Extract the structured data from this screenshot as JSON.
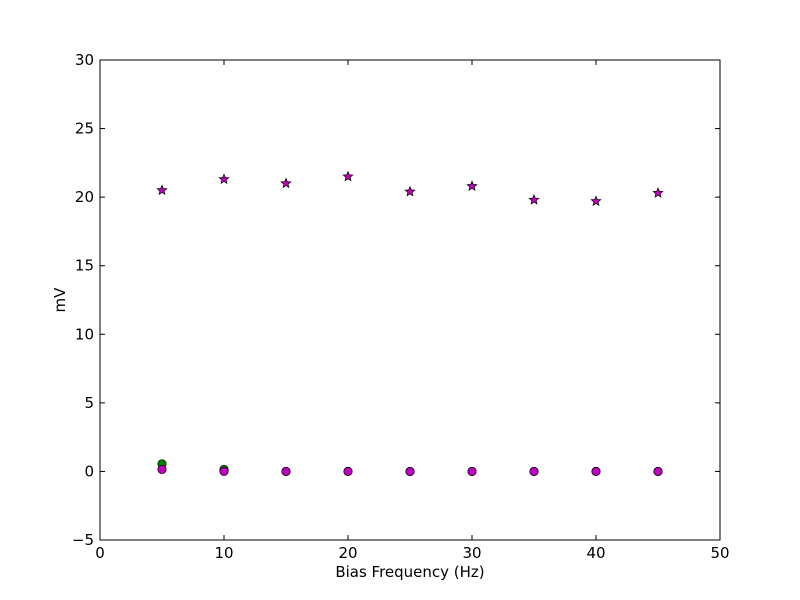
{
  "chart_data": {
    "type": "scatter",
    "title": "",
    "xlabel": "Bias Frequency (Hz)",
    "ylabel": "mV",
    "xlim": [
      0,
      50
    ],
    "ylim": [
      -5,
      30
    ],
    "xticks": [
      0,
      10,
      20,
      30,
      40,
      50
    ],
    "yticks": [
      -5,
      0,
      5,
      10,
      15,
      20,
      25,
      30
    ],
    "xtick_labels": [
      "0",
      "10",
      "20",
      "30",
      "40",
      "50"
    ],
    "ytick_labels": [
      "−5",
      "0",
      "5",
      "10",
      "15",
      "20",
      "25",
      "30"
    ],
    "grid": false,
    "legend": "none",
    "series": [
      {
        "marker": "circle",
        "color": "#008000",
        "x": [
          5,
          10,
          15,
          20,
          25,
          30,
          35,
          40,
          45
        ],
        "y": [
          0.55,
          0.15,
          0.0,
          0.0,
          0.0,
          0.0,
          0.0,
          0.0,
          0.0
        ]
      },
      {
        "marker": "circle",
        "color": "#bf00bf",
        "x": [
          5,
          10,
          15,
          20,
          25,
          30,
          35,
          40,
          45
        ],
        "y": [
          0.15,
          0.0,
          0.0,
          0.0,
          0.0,
          0.0,
          0.0,
          0.0,
          0.0
        ]
      },
      {
        "marker": "star",
        "color": "#bf00bf",
        "x": [
          5,
          10,
          15,
          20,
          25,
          30,
          35,
          40,
          45
        ],
        "y": [
          20.5,
          21.3,
          21.0,
          21.5,
          20.4,
          20.8,
          19.8,
          19.7,
          20.3
        ]
      }
    ]
  }
}
